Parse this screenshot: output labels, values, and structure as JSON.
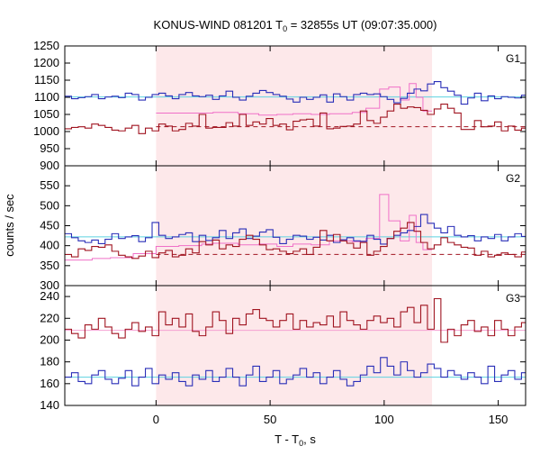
{
  "chart_data": {
    "type": "line",
    "title_prefix": "KONUS-WIND 081201 T",
    "title_sub": "0",
    "title_suffix": " = 32855s UT (09:07:35.000)",
    "xlabel_prefix": "T - T",
    "xlabel_sub": "0",
    "xlabel_suffix": ", s",
    "ylabel": "counts / sec",
    "xlim": [
      -40,
      162
    ],
    "xticks": [
      0,
      50,
      100,
      150
    ],
    "highlight": [
      0,
      121
    ],
    "grid": false,
    "colors": {
      "background": "#ffffff",
      "highlight": "#fde8ea",
      "blue": "#2a2fb8",
      "darkred": "#a01420",
      "pink": "#f070c8",
      "cyan": "#5ed2e0",
      "lightpink": "#f4a0d2",
      "axis": "#000000"
    },
    "panels": [
      {
        "name": "G1",
        "ylim": [
          900,
          1250
        ],
        "yticks": [
          900,
          950,
          1000,
          1050,
          1100,
          1150,
          1200,
          1250
        ],
        "bin_width": 2.944,
        "x_start": -40,
        "background_level": 1101,
        "dashed_level": 1014,
        "blue": [
          1103,
          1096,
          1099,
          1102,
          1108,
          1096,
          1101,
          1103,
          1099,
          1112,
          1108,
          1092,
          1100,
          1108,
          1112,
          1104,
          1096,
          1108,
          1114,
          1104,
          1102,
          1106,
          1094,
          1104,
          1118,
          1100,
          1092,
          1103,
          1112,
          1120,
          1114,
          1108,
          1103,
          1095,
          1086,
          1100,
          1094,
          1100,
          1107,
          1086,
          1110,
          1102,
          1092,
          1108,
          1112,
          1108,
          1110,
          1102,
          1094,
          1084,
          1097,
          1112,
          1124,
          1119,
          1139,
          1146,
          1128,
          1118,
          1106,
          1080,
          1098,
          1112,
          1090,
          1104,
          1096,
          1102,
          1100,
          1098,
          1106,
          1112,
          1120,
          1110
        ],
        "darkred": [
          1008,
          1012,
          1014,
          1010,
          1022,
          1018,
          1012,
          1004,
          1002,
          1010,
          1018,
          994,
          1010,
          1002,
          1022,
          1016,
          1002,
          1006,
          1024,
          1016,
          1050,
          1010,
          1012,
          1012,
          1026,
          1016,
          1050,
          1018,
          1028,
          1022,
          1038,
          1018,
          1022,
          1005,
          1030,
          1034,
          1036,
          1016,
          1054,
          1008,
          1010,
          1015,
          1016,
          1022,
          1060,
          1032,
          1024,
          1042,
          1060,
          1080,
          1068,
          1072,
          1070,
          1062,
          1050,
          1066,
          1080,
          1068,
          1054,
          1006,
          1006,
          1032,
          1014,
          1016,
          1028,
          1002,
          1016,
          1004,
          1010,
          1008,
          1008,
          1004
        ],
        "pink_steps": [
          [
            0,
            1054
          ],
          [
            20,
            1054
          ],
          [
            25,
            1056
          ],
          [
            36,
            1052
          ],
          [
            45,
            1048
          ],
          [
            53,
            1050
          ],
          [
            60,
            1052
          ],
          [
            68,
            1050
          ],
          [
            76,
            1052
          ],
          [
            86,
            1056
          ],
          [
            92,
            1068
          ],
          [
            98,
            1124
          ],
          [
            102,
            1130
          ],
          [
            107,
            1092
          ],
          [
            111,
            1140
          ],
          [
            114,
            1100
          ],
          [
            117,
            1060
          ],
          [
            121,
            1060
          ]
        ]
      },
      {
        "name": "G2",
        "ylim": [
          300,
          600
        ],
        "yticks": [
          300,
          350,
          400,
          450,
          500,
          550
        ],
        "bin_width": 2.944,
        "x_start": -40,
        "background_level": 422,
        "dashed_level": 378,
        "blue": [
          430,
          420,
          412,
          408,
          414,
          405,
          416,
          430,
          418,
          422,
          425,
          410,
          420,
          458,
          426,
          418,
          422,
          428,
          432,
          410,
          426,
          413,
          420,
          438,
          418,
          432,
          442,
          418,
          424,
          434,
          440,
          421,
          405,
          416,
          426,
          424,
          416,
          421,
          414,
          426,
          408,
          415,
          420,
          412,
          411,
          426,
          416,
          404,
          418,
          426,
          432,
          438,
          448,
          478,
          456,
          444,
          432,
          448,
          426,
          422,
          425,
          412,
          422,
          418,
          428,
          412,
          422,
          430,
          423,
          420,
          422,
          418
        ],
        "darkred": [
          378,
          372,
          392,
          388,
          398,
          396,
          402,
          386,
          376,
          372,
          368,
          374,
          386,
          370,
          382,
          388,
          372,
          376,
          392,
          382,
          410,
          402,
          414,
          392,
          402,
          398,
          416,
          426,
          416,
          402,
          390,
          392,
          386,
          380,
          386,
          392,
          378,
          396,
          438,
          412,
          428,
          412,
          406,
          394,
          408,
          376,
          386,
          398,
          418,
          436,
          444,
          458,
          436,
          408,
          392,
          402,
          420,
          408,
          402,
          396,
          394,
          376,
          386,
          372,
          376,
          382,
          378,
          372,
          384,
          380,
          382,
          378
        ],
        "pink_steps": [
          [
            -40,
            364
          ],
          [
            -36,
            364
          ],
          [
            -28,
            368
          ],
          [
            -20,
            370
          ],
          [
            -10,
            380
          ],
          [
            0,
            398
          ],
          [
            10,
            400
          ],
          [
            20,
            404
          ],
          [
            25,
            406
          ],
          [
            36,
            402
          ],
          [
            45,
            404
          ],
          [
            53,
            398
          ],
          [
            60,
            404
          ],
          [
            68,
            402
          ],
          [
            76,
            412
          ],
          [
            86,
            410
          ],
          [
            92,
            418
          ],
          [
            98,
            528
          ],
          [
            102,
            462
          ],
          [
            107,
            412
          ],
          [
            111,
            476
          ],
          [
            114,
            408
          ],
          [
            117,
            390
          ],
          [
            121,
            390
          ]
        ]
      },
      {
        "name": "G3",
        "ylim": [
          140,
          250
        ],
        "yticks": [
          140,
          160,
          180,
          200,
          220,
          240
        ],
        "bin_width": 2.944,
        "x_start": -40,
        "background_level": 166,
        "dashed_level": 209,
        "blue": [
          166,
          170,
          162,
          160,
          168,
          172,
          164,
          160,
          165,
          172,
          158,
          166,
          174,
          160,
          168,
          164,
          170,
          162,
          158,
          168,
          164,
          172,
          162,
          166,
          174,
          166,
          158,
          168,
          176,
          162,
          166,
          172,
          160,
          164,
          168,
          174,
          166,
          170,
          160,
          166,
          172,
          164,
          158,
          162,
          168,
          176,
          170,
          184,
          176,
          168,
          180,
          172,
          166,
          170,
          178,
          174,
          166,
          172,
          168,
          164,
          170,
          166,
          160,
          176,
          162,
          168,
          172,
          164,
          170,
          176,
          170,
          180
        ],
        "darkred": [
          210,
          206,
          202,
          214,
          210,
          220,
          212,
          206,
          202,
          210,
          216,
          208,
          212,
          204,
          226,
          214,
          220,
          212,
          224,
          208,
          204,
          212,
          226,
          218,
          206,
          220,
          214,
          224,
          228,
          220,
          218,
          212,
          218,
          224,
          210,
          218,
          212,
          216,
          214,
          222,
          212,
          226,
          218,
          214,
          210,
          218,
          222,
          216,
          220,
          212,
          226,
          230,
          216,
          232,
          210,
          238,
          198,
          210,
          204,
          214,
          218,
          208,
          212,
          204,
          218,
          210,
          204,
          212,
          216,
          210,
          214,
          208
        ],
        "pink_steps": []
      }
    ]
  }
}
